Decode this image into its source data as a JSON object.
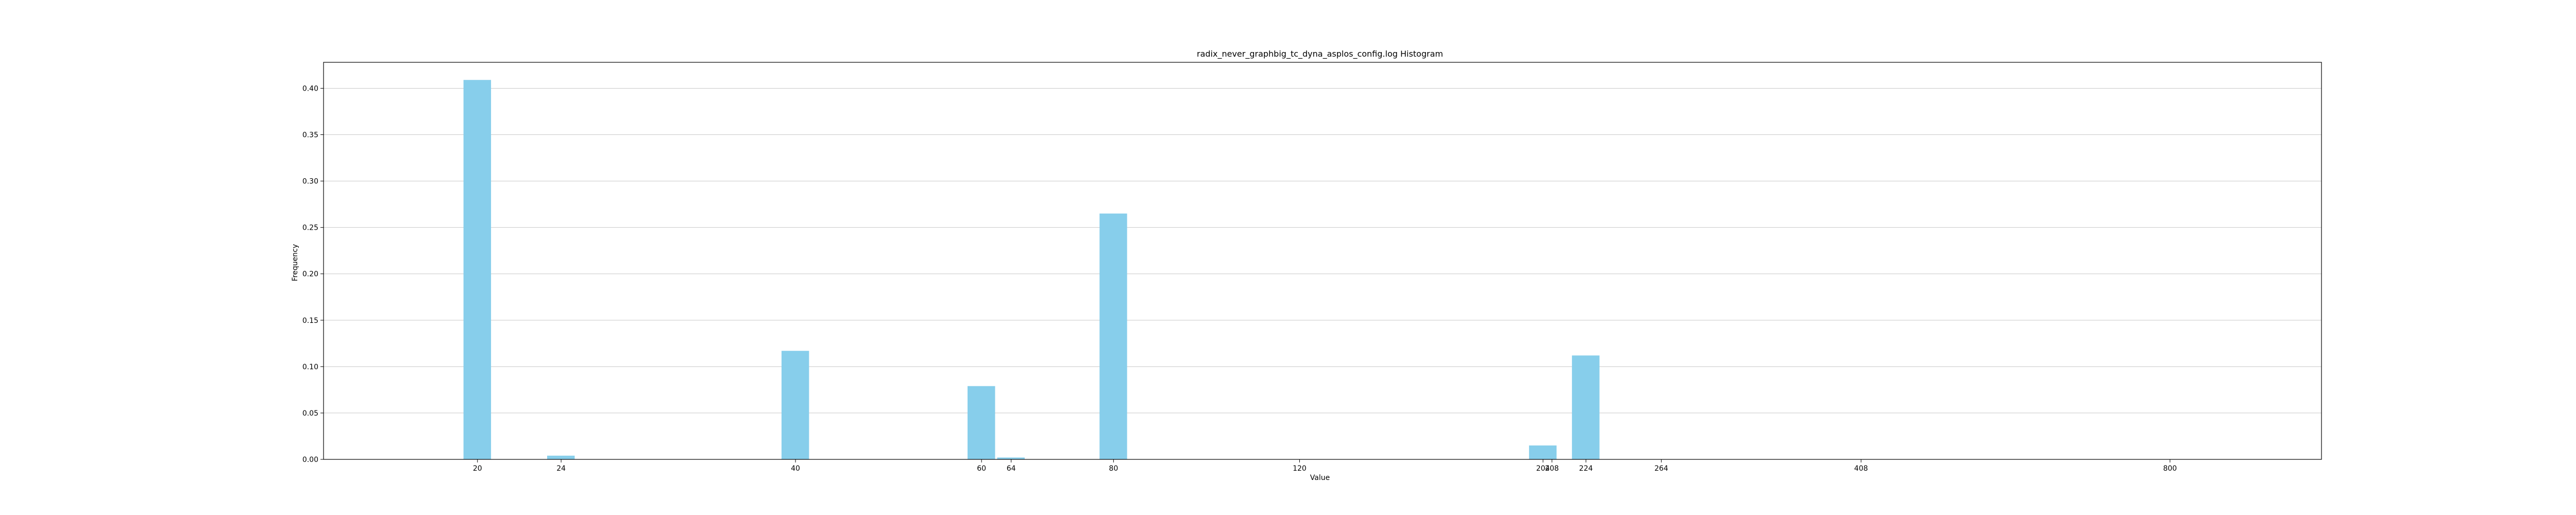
{
  "chart_data": {
    "type": "bar",
    "title": "radix_never_graphbig_tc_dyna_asplos_config.log Histogram",
    "xlabel": "Value",
    "ylabel": "Frequency",
    "x_scale": "log",
    "xlim": [
      14.3,
      1113
    ],
    "ylim": [
      0,
      0.428
    ],
    "grid": "y",
    "yticks": [
      0.0,
      0.05,
      0.1,
      0.15,
      0.2,
      0.25,
      0.3,
      0.35,
      0.4
    ],
    "yticklabels": [
      "0.00",
      "0.05",
      "0.10",
      "0.15",
      "0.20",
      "0.25",
      "0.30",
      "0.35",
      "0.40"
    ],
    "xticks": [
      20,
      24,
      40,
      60,
      64,
      80,
      120,
      204,
      208,
      224,
      264,
      408,
      800
    ],
    "xticklabels": [
      "20",
      "24",
      "40",
      "60",
      "64",
      "80",
      "120",
      "204",
      "208",
      "224",
      "264",
      "408",
      "800"
    ],
    "categories": [
      20,
      24,
      40,
      60,
      64,
      80,
      204,
      224
    ],
    "values": [
      0.409,
      0.004,
      0.117,
      0.079,
      0.002,
      0.265,
      0.015,
      0.112
    ],
    "bar_color": "#87ceeb"
  }
}
